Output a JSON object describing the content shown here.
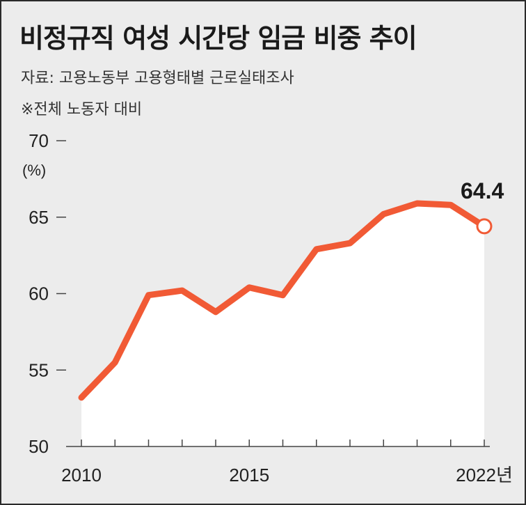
{
  "header": {
    "title": "비정규직 여성 시간당 임금 비중 추이",
    "source": "자료: 고용노동부 고용형태별 근로실태조사",
    "note": "※전체 노동자 대비"
  },
  "colors": {
    "line": "#f15a35",
    "background": "#ececec",
    "area": "#ffffff",
    "axis": "#444444"
  },
  "chart_data": {
    "type": "area",
    "title": "비정규직 여성 시간당 임금 비중 추이",
    "ylabel": "(%)",
    "xlabel": "",
    "ylim": [
      50,
      70
    ],
    "yticks": [
      "50",
      "55",
      "60",
      "65",
      "70"
    ],
    "xlim": [
      2010,
      2022
    ],
    "xtick_labels": [
      {
        "year": 2010,
        "label": "2010"
      },
      {
        "year": 2015,
        "label": "2015"
      },
      {
        "year": 2022,
        "label": "2022년"
      }
    ],
    "grid": false,
    "series": [
      {
        "x": [
          2010,
          2011,
          2012,
          2013,
          2014,
          2015,
          2016,
          2017,
          2018,
          2019,
          2020,
          2021,
          2022
        ],
        "values": [
          53.2,
          55.5,
          59.9,
          60.2,
          58.8,
          60.4,
          59.9,
          62.9,
          63.3,
          65.2,
          65.9,
          65.8,
          64.4
        ]
      }
    ],
    "annotations": [
      {
        "x": 2022,
        "text": "64.4"
      }
    ]
  }
}
